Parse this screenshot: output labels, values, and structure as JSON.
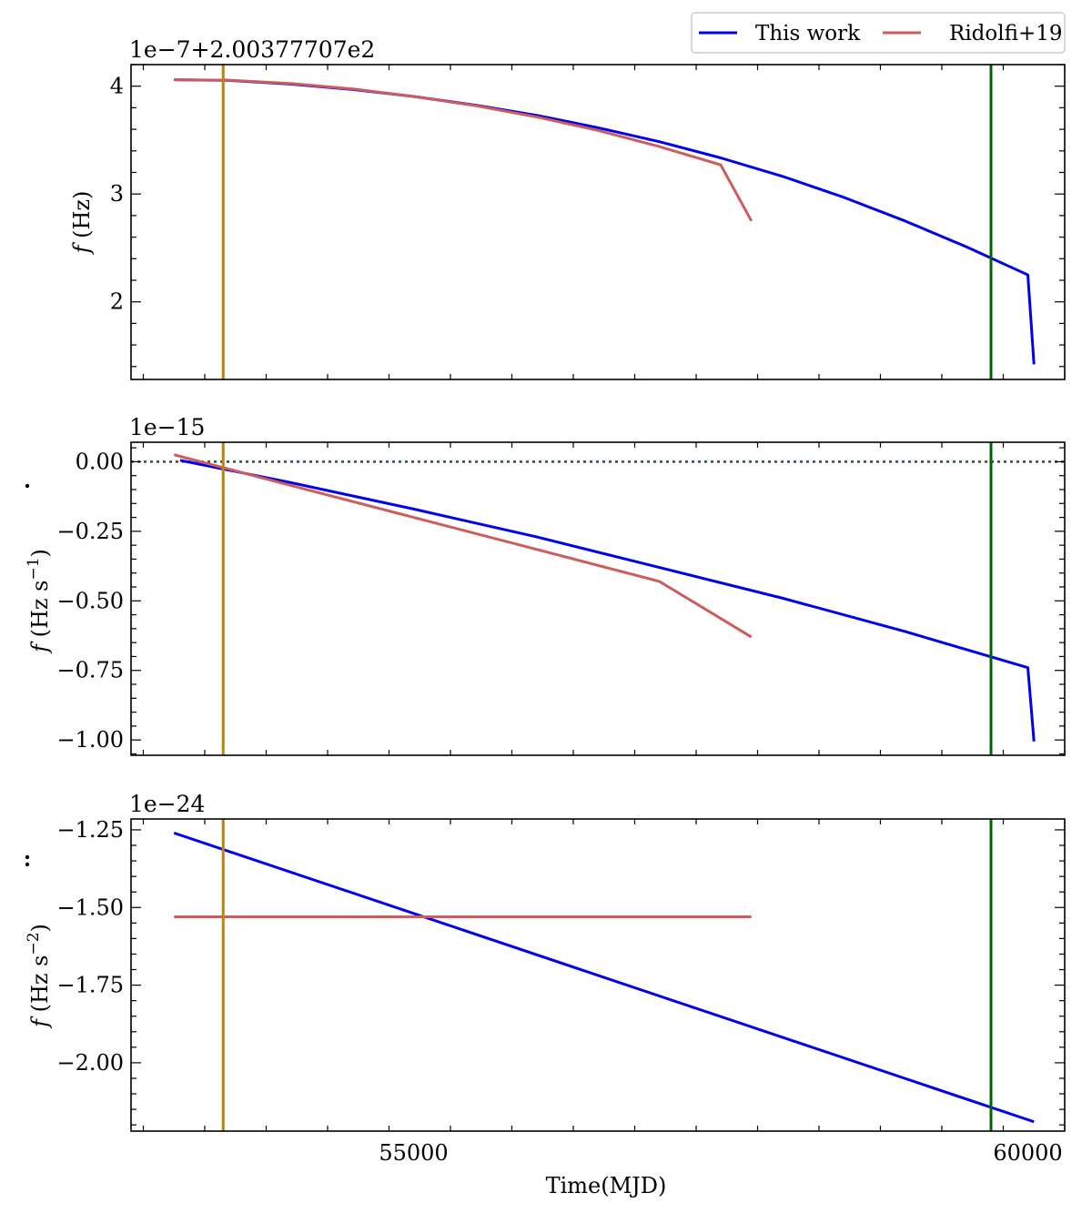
{
  "legend": [
    {
      "name": "This work",
      "color": "#0000ee"
    },
    {
      "name": "Ridolfi+19",
      "color": "#cd5c5c"
    }
  ],
  "xlabel": "Time(MJD)",
  "chart_data": [
    {
      "type": "line",
      "panel": "frequency",
      "offset_text": "1e−7+2.00377707e2",
      "ylabel_symbol": "f",
      "ylabel_unit": " (Hz)",
      "xlim": [
        52700,
        60300
      ],
      "ylim": [
        1.28,
        4.2
      ],
      "xticks": [
        55000,
        60000
      ],
      "yticks": [
        2,
        3,
        4
      ],
      "vlines": [
        {
          "x": 53450,
          "color": "#b8860b"
        },
        {
          "x": 59700,
          "color": "#006400"
        }
      ],
      "series": [
        {
          "name": "This work",
          "color": "#0000ee",
          "x": [
            53050,
            53500,
            54000,
            54500,
            55000,
            55500,
            56000,
            56500,
            57000,
            57500,
            58000,
            58500,
            59000,
            59500,
            60000,
            60050
          ],
          "y": [
            4.06,
            4.053,
            4.02,
            3.97,
            3.905,
            3.825,
            3.73,
            3.615,
            3.485,
            3.335,
            3.165,
            2.97,
            2.75,
            2.51,
            2.25,
            1.42
          ]
        },
        {
          "name": "Ridolfi+19",
          "color": "#cd5c5c",
          "x": [
            53050,
            53500,
            54000,
            54500,
            55000,
            55500,
            56000,
            56500,
            57000,
            57500,
            57750
          ],
          "y": [
            4.06,
            4.055,
            4.025,
            3.975,
            3.905,
            3.82,
            3.715,
            3.59,
            3.44,
            3.27,
            2.75
          ]
        }
      ]
    },
    {
      "type": "line",
      "panel": "frequency-derivative",
      "offset_text": "1e−15",
      "ylabel_symbol": "f",
      "ylabel_unit": " (Hz s",
      "ylabel_power": "−1",
      "ylabel_close": ")",
      "xlim": [
        52700,
        60300
      ],
      "ylim": [
        -1.055,
        0.07
      ],
      "xticks": [
        55000,
        60000
      ],
      "yticks": [
        0.0,
        -0.25,
        -0.5,
        -0.75,
        -1.0
      ],
      "ytick_labels": [
        "0.00",
        "−0.25",
        "−0.50",
        "−0.75",
        "−1.00"
      ],
      "hline": {
        "y": 0.0,
        "color": "#2f4f2f"
      },
      "vlines": [
        {
          "x": 53450,
          "color": "#b8860b"
        },
        {
          "x": 59700,
          "color": "#006400"
        }
      ],
      "series": [
        {
          "name": "This work",
          "color": "#0000ee",
          "x": [
            53100,
            54000,
            55000,
            56000,
            57000,
            58000,
            59000,
            60000,
            60050
          ],
          "y": [
            0.005,
            -0.075,
            -0.17,
            -0.27,
            -0.38,
            -0.49,
            -0.61,
            -0.74,
            -1.005
          ]
        },
        {
          "name": "Ridolfi+19",
          "color": "#cd5c5c",
          "x": [
            53050,
            54000,
            55000,
            56000,
            57000,
            57750
          ],
          "y": [
            0.025,
            -0.085,
            -0.2,
            -0.315,
            -0.43,
            -0.63
          ]
        }
      ]
    },
    {
      "type": "line",
      "panel": "frequency-second-derivative",
      "offset_text": "1e−24",
      "ylabel_symbol": "f",
      "ylabel_unit": " (Hz s",
      "ylabel_power": "−2",
      "ylabel_close": ")",
      "xlim": [
        52700,
        60300
      ],
      "ylim": [
        -2.22,
        -1.215
      ],
      "xticks": [
        55000,
        60000
      ],
      "yticks": [
        -1.25,
        -1.5,
        -1.75,
        -2.0
      ],
      "ytick_labels": [
        "−1.25",
        "−1.50",
        "−1.75",
        "−2.00"
      ],
      "vlines": [
        {
          "x": 53450,
          "color": "#b8860b"
        },
        {
          "x": 59700,
          "color": "#006400"
        }
      ],
      "series": [
        {
          "name": "This work",
          "color": "#0000ee",
          "x": [
            53050,
            60050
          ],
          "y": [
            -1.26,
            -2.19
          ]
        },
        {
          "name": "Ridolfi+19",
          "color": "#cd5c5c",
          "x": [
            53050,
            57750
          ],
          "y": [
            -1.53,
            -1.53
          ]
        }
      ]
    }
  ]
}
